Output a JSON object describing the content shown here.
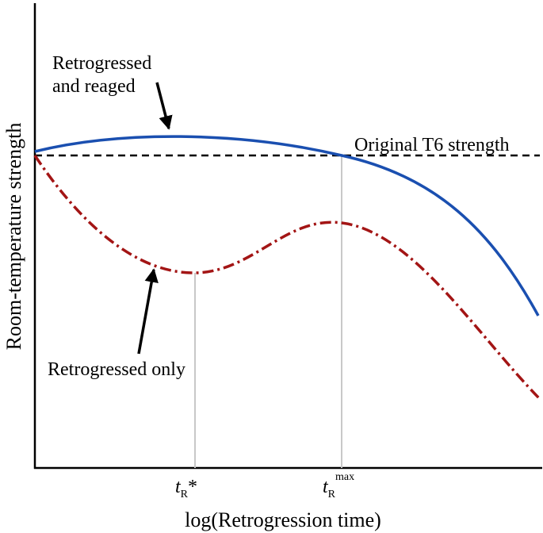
{
  "chart_data": {
    "type": "line",
    "title": "",
    "xlabel": "log(Retrogression time)",
    "ylabel": "Room-temperature strength",
    "x_ticks": [
      {
        "main": "t",
        "sub": "R",
        "suffix": "*",
        "sup": ""
      },
      {
        "main": "t",
        "sub": "R",
        "suffix": "",
        "sup": "max"
      }
    ],
    "reference_line": {
      "label": "Original T6 strength",
      "style": "dashed",
      "color": "#000000"
    },
    "series": [
      {
        "key": "reaged",
        "label": "Retrogressed and reaged",
        "color": "#1a4fb0",
        "style": "solid"
      },
      {
        "key": "retro",
        "label": "Retrogressed only",
        "color": "#a31515",
        "style": "dash-dot"
      }
    ],
    "annotations": {
      "reaged_lines": [
        "Retrogressed",
        "and reaged"
      ],
      "retro_text": "Retrogressed only"
    },
    "grid": false,
    "legend": "none"
  }
}
